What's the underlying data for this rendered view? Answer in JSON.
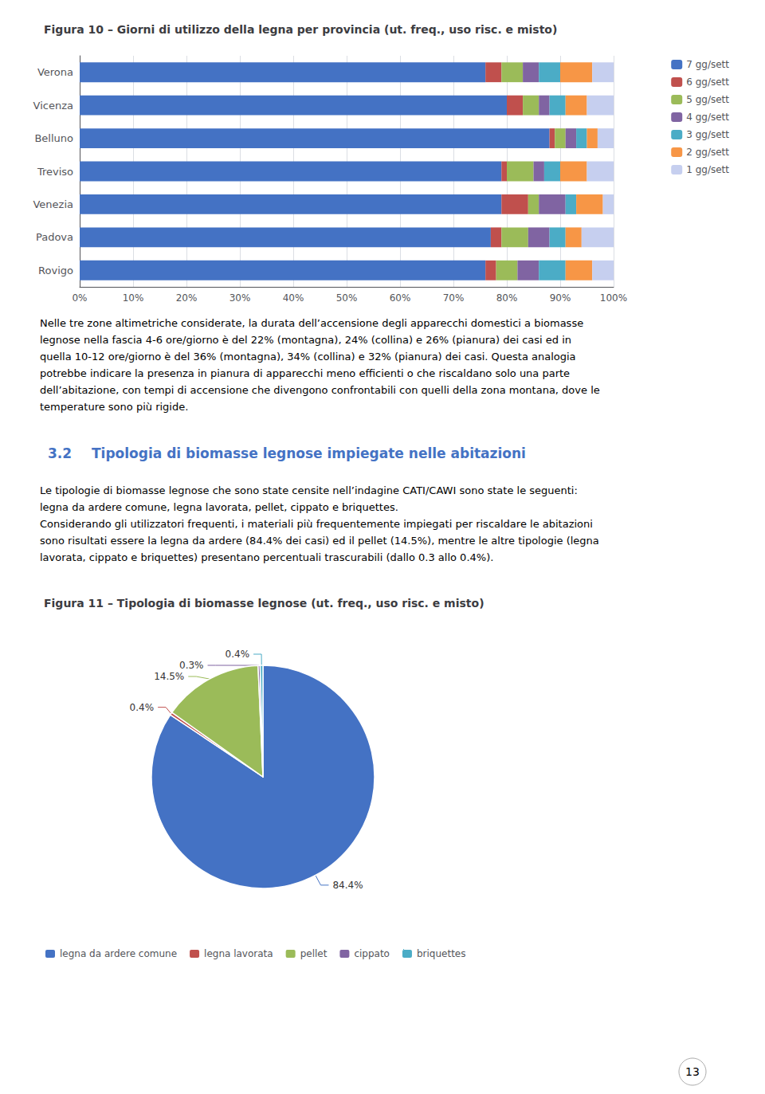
{
  "chart_data": [
    {
      "type": "bar",
      "title": "Figura 10 – Giorni di utilizzo della legna per provincia (ut. freq., uso risc. e misto)",
      "orientation": "horizontal",
      "stacked": true,
      "categories": [
        "Verona",
        "Vicenza",
        "Belluno",
        "Treviso",
        "Venezia",
        "Padova",
        "Rovigo"
      ],
      "series": [
        {
          "name": "7 gg/sett",
          "color": "#4472C4",
          "values": [
            76,
            80,
            88,
            79,
            79,
            77,
            76
          ]
        },
        {
          "name": "6 gg/sett",
          "color": "#C0504D",
          "values": [
            3,
            3,
            1,
            1,
            5,
            2,
            2
          ]
        },
        {
          "name": "5 gg/sett",
          "color": "#9BBB59",
          "values": [
            4,
            3,
            2,
            5,
            2,
            5,
            4
          ]
        },
        {
          "name": "4 gg/sett",
          "color": "#8064A2",
          "values": [
            3,
            2,
            2,
            2,
            5,
            4,
            4
          ]
        },
        {
          "name": "3 gg/sett",
          "color": "#4BACC6",
          "values": [
            4,
            3,
            2,
            3,
            2,
            3,
            5
          ]
        },
        {
          "name": "2 gg/sett",
          "color": "#F79646",
          "values": [
            6,
            4,
            2,
            5,
            5,
            3,
            5
          ]
        },
        {
          "name": "1 gg/sett",
          "color": "#C6CFEF",
          "values": [
            4,
            5,
            3,
            5,
            2,
            6,
            4
          ]
        }
      ],
      "xlim": [
        0,
        100
      ],
      "xticks": [
        {
          "value": 0,
          "label": "0%"
        },
        {
          "value": 10,
          "label": "10%"
        },
        {
          "value": 20,
          "label": "20%"
        },
        {
          "value": 30,
          "label": "30%"
        },
        {
          "value": 40,
          "label": "40%"
        },
        {
          "value": 50,
          "label": "50%"
        },
        {
          "value": 60,
          "label": "60%"
        },
        {
          "value": 70,
          "label": "70%"
        },
        {
          "value": 80,
          "label": "80%"
        },
        {
          "value": 90,
          "label": "90%"
        },
        {
          "value": 100,
          "label": "100%"
        }
      ],
      "grid": true,
      "legend": "right"
    },
    {
      "type": "pie",
      "title": "Figura 11 – Tipologia di biomasse legnose (ut. freq., uso risc. e misto)",
      "categories": [
        "legna da ardere comune",
        "legna lavorata",
        "pellet",
        "cippato",
        "briquettes"
      ],
      "values": [
        84.4,
        0.4,
        14.5,
        0.3,
        0.4
      ],
      "value_labels": [
        "84.4%",
        "0.4%",
        "14.5%",
        "0.3%",
        "0.4%"
      ],
      "colors": [
        "#4472C4",
        "#C0504D",
        "#9BBB59",
        "#8064A2",
        "#4BACC6"
      ],
      "data_labels": true,
      "legend": "bottom"
    }
  ],
  "annotations": [
    "Nelle tre zone altimetriche considerate, la durata dell’accensione degli apparecchi domestici a biomasse\nlegnose nella fascia 4-6 ore/giorno è del 22% (montagna), 24% (collina) e 26% (pianura) dei casi ed in\nquella 10-12 ore/giorno è del 36% (montagna), 34% (collina) e 32% (pianura) dei casi. Questa analogia\npotrebbe indicare la presenza in pianura di apparecchi meno efficienti o che riscaldano solo una parte\ndell’abitazione, con tempi di accensione che divengono confrontabili con quelli della zona montana, dove le\ntemperature sono più rigide.",
    "3.2",
    "Tipologia di biomasse legnose impiegate nelle abitazioni",
    "Le tipologie di biomasse legnose che sono state censite nell’indagine CATI/CAWI sono state le seguenti:\nlegna da ardere comune, legna lavorata, pellet, cippato e briquettes.\nConsiderando gli utilizzatori frequenti, i materiali più frequentemente impiegati per riscaldare le abitazioni\nsono risultati essere la legna da ardere (84.4% dei casi) ed il pellet (14.5%), mentre le altre tipologie (legna\nlavorata, cippato e briquettes) presentano percentuali trascurabili (dallo 0.3 allo 0.4%).",
    "13"
  ]
}
